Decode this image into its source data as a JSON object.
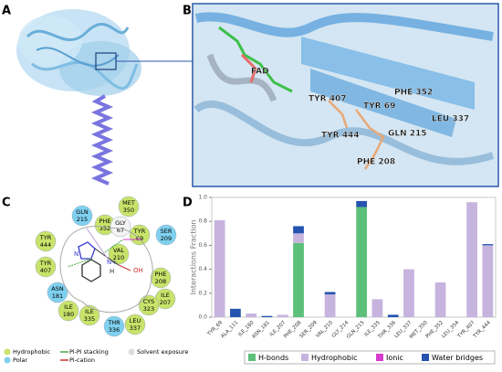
{
  "panel_labels": [
    "A",
    "B",
    "C",
    "D"
  ],
  "structure_labels": [
    "FAD",
    "TYR 407",
    "PHE 352",
    "TYR 69",
    "TYR 444",
    "GLN 215",
    "LEU 337",
    "PHE 208"
  ],
  "interaction_diagram": {
    "residues": [
      {
        "name": "GLN",
        "num": "215",
        "kind": "polar"
      },
      {
        "name": "PHE",
        "num": "352",
        "kind": "hydrophobic"
      },
      {
        "name": "MET",
        "num": "350",
        "kind": "hydrophobic"
      },
      {
        "name": "GLY",
        "num": "67",
        "kind": "glycine"
      },
      {
        "name": "TYR",
        "num": "69",
        "kind": "hydrophobic"
      },
      {
        "name": "TYR",
        "num": "444",
        "kind": "hydrophobic"
      },
      {
        "name": "VAL",
        "num": "210",
        "kind": "hydrophobic"
      },
      {
        "name": "SER",
        "num": "209",
        "kind": "polar"
      },
      {
        "name": "TYR",
        "num": "407",
        "kind": "hydrophobic"
      },
      {
        "name": "PHE",
        "num": "208",
        "kind": "hydrophobic"
      },
      {
        "name": "ILE",
        "num": "207",
        "kind": "hydrophobic"
      },
      {
        "name": "ASN",
        "num": "181",
        "kind": "polar"
      },
      {
        "name": "ILE",
        "num": "180",
        "kind": "hydrophobic"
      },
      {
        "name": "ILE",
        "num": "335",
        "kind": "hydrophobic"
      },
      {
        "name": "THR",
        "num": "336",
        "kind": "polar"
      },
      {
        "name": "LEU",
        "num": "337",
        "kind": "hydrophobic"
      },
      {
        "name": "CYS",
        "num": "323",
        "kind": "hydrophobic"
      }
    ],
    "atoms": [
      "N",
      "N+",
      "H",
      "OH"
    ],
    "legend": [
      "Hydrophobic",
      "Polar",
      "Pi-Pi stacking",
      "Pi-cation",
      "Solvent exposure"
    ]
  },
  "chart_data": {
    "type": "bar",
    "stacked": true,
    "y_label": "Interactions Fraction",
    "categories": [
      "TYR_69",
      "ALA_111",
      "ILE_180",
      "ASN_181",
      "ILE_207",
      "PHE_208",
      "SER_209",
      "VAL_210",
      "GLY_214",
      "GLN_215",
      "ILE_335",
      "THR_336",
      "LEU_337",
      "MET_350",
      "PHE_352",
      "LEU_354",
      "TYR_407",
      "TYR_444"
    ],
    "series": [
      {
        "name": "H-bonds",
        "color": "#5cc07a",
        "values": [
          0,
          0,
          0,
          0,
          0,
          0.62,
          0,
          0,
          0,
          0.92,
          0,
          0,
          0,
          0,
          0,
          0,
          0,
          0
        ]
      },
      {
        "name": "Hydrophobic",
        "color": "#c6b4de",
        "values": [
          0.81,
          0,
          0.03,
          0,
          0.02,
          0.08,
          0,
          0.19,
          0,
          0,
          0.15,
          0,
          0.4,
          0,
          0.29,
          0,
          0.96,
          0.6
        ]
      },
      {
        "name": "Ionic",
        "color": "#d63bd0",
        "values": [
          0,
          0,
          0,
          0,
          0,
          0,
          0,
          0,
          0,
          0,
          0,
          0,
          0,
          0,
          0,
          0,
          0,
          0
        ]
      },
      {
        "name": "Water bridges",
        "color": "#2454b0",
        "values": [
          0,
          0.07,
          0,
          0.01,
          0,
          0.06,
          0,
          0.02,
          0,
          0.05,
          0,
          0.02,
          0,
          0,
          0,
          0,
          0,
          0.01
        ]
      }
    ],
    "ylim": [
      0,
      1.0
    ],
    "yticks": [
      {
        "value": 0,
        "label": "0.0"
      },
      0.2,
      0.4,
      0.6,
      0.8,
      {
        "value": 1.0,
        "label": "1.0"
      }
    ]
  }
}
